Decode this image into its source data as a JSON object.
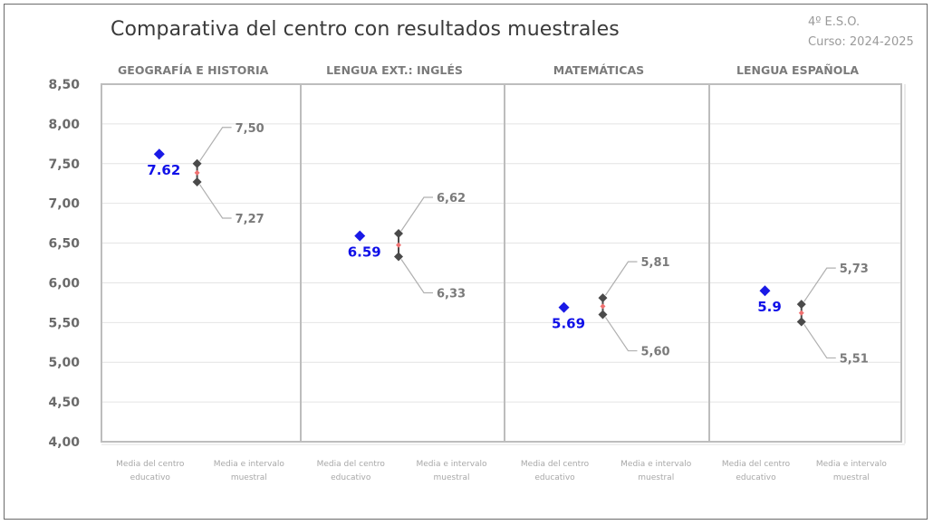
{
  "header": {
    "title": "Comparativa del centro con resultados muestrales",
    "level": "4º E.S.O.",
    "course": "Curso: 2024-2025"
  },
  "colors": {
    "center_marker": "#1a1ae6",
    "center_label": "#1010e8",
    "interval": "#4a4a4a",
    "sample_mean": "#f07070",
    "grid": "#e4e4e4",
    "panel_border": "#bdbdbd"
  },
  "chart_data": {
    "type": "scatter",
    "title": "Comparativa del centro con resultados muestrales",
    "subtitle": "4º E.S.O. — Curso: 2024-2025",
    "xlabel": "",
    "ylabel": "",
    "ylim": [
      4.0,
      8.5
    ],
    "yticks": [
      "4,00",
      "4,50",
      "5,00",
      "5,50",
      "6,00",
      "6,50",
      "7,00",
      "7,50",
      "8,00",
      "8,50"
    ],
    "grid": true,
    "category_labels": [
      "Media del centro educativo",
      "Media e intervalo muestral"
    ],
    "panels": [
      {
        "subject": "GEOGRAFÍA E HISTORIA",
        "center_mean": 7.62,
        "center_label": "7.62",
        "interval_upper": 7.5,
        "interval_lower": 7.27,
        "upper_label": "7,50",
        "lower_label": "7,27"
      },
      {
        "subject": "LENGUA EXT.: INGLÉS",
        "center_mean": 6.59,
        "center_label": "6.59",
        "interval_upper": 6.62,
        "interval_lower": 6.33,
        "upper_label": "6,62",
        "lower_label": "6,33"
      },
      {
        "subject": "MATEMÁTICAS",
        "center_mean": 5.69,
        "center_label": "5.69",
        "interval_upper": 5.81,
        "interval_lower": 5.6,
        "upper_label": "5,81",
        "lower_label": "5,60"
      },
      {
        "subject": "LENGUA ESPAÑOLA",
        "center_mean": 5.9,
        "center_label": "5.9",
        "interval_upper": 5.73,
        "interval_lower": 5.51,
        "upper_label": "5,73",
        "lower_label": "5,51"
      }
    ]
  }
}
